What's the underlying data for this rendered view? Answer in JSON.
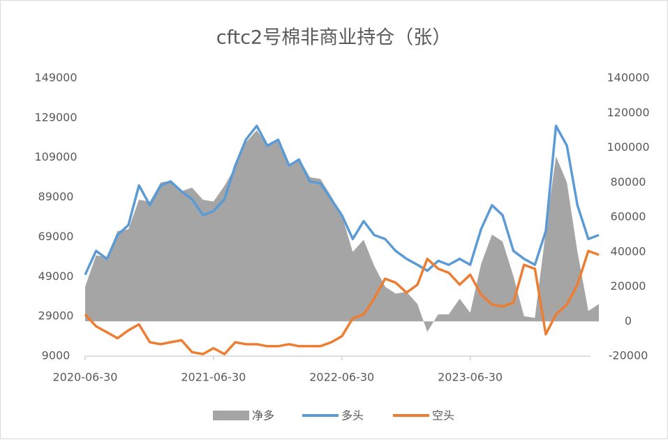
{
  "chart_data": {
    "type": "line",
    "title": "cftc2号棉非商业持仓（张）",
    "x": [
      "2020-06-30",
      "2020-07-31",
      "2020-08-31",
      "2020-09-30",
      "2020-10-31",
      "2020-11-30",
      "2020-12-31",
      "2021-01-31",
      "2021-02-28",
      "2021-03-31",
      "2021-04-30",
      "2021-05-31",
      "2021-06-30",
      "2021-07-31",
      "2021-08-31",
      "2021-09-30",
      "2021-10-31",
      "2021-11-30",
      "2021-12-31",
      "2022-01-31",
      "2022-02-28",
      "2022-03-31",
      "2022-04-30",
      "2022-05-31",
      "2022-06-30",
      "2022-07-31",
      "2022-08-31",
      "2022-09-30",
      "2022-10-31",
      "2022-11-30",
      "2022-12-31",
      "2023-01-31",
      "2023-02-28",
      "2023-03-31",
      "2023-04-30",
      "2023-05-31",
      "2023-06-30",
      "2023-07-31",
      "2023-08-31",
      "2023-09-30",
      "2023-10-31",
      "2023-11-30",
      "2023-12-31",
      "2024-01-31",
      "2024-02-29",
      "2024-03-31",
      "2024-04-30",
      "2024-05-31",
      "2024-06-30"
    ],
    "xlim": [
      "2020-06-30",
      "2024-06-30"
    ],
    "xticks": [
      "2020-06-30",
      "2021-06-30",
      "2022-06-30",
      "2023-06-30"
    ],
    "ylim": [
      9000,
      149000
    ],
    "yticks": [
      9000,
      29000,
      49000,
      69000,
      89000,
      109000,
      129000,
      149000
    ],
    "y2lim": [
      -20000,
      140000
    ],
    "y2ticks": [
      -20000,
      0,
      20000,
      40000,
      60000,
      80000,
      100000,
      120000,
      140000
    ],
    "series": [
      {
        "name": "净多",
        "type": "area",
        "axis": "y2",
        "color": "#a5a5a5",
        "values": [
          20000,
          38000,
          37000,
          52000,
          53000,
          70000,
          69000,
          80000,
          81000,
          75000,
          77000,
          70000,
          69000,
          78000,
          89000,
          103000,
          110000,
          101000,
          104000,
          90000,
          94000,
          83000,
          82000,
          72000,
          61000,
          40000,
          47000,
          32000,
          20000,
          16000,
          17000,
          10000,
          -6000,
          4000,
          4000,
          13000,
          5000,
          33000,
          50000,
          46000,
          26000,
          3000,
          2000,
          52000,
          95000,
          80000,
          40000,
          6000,
          10000
        ]
      },
      {
        "name": "多头",
        "type": "line",
        "color": "#5b9bd5",
        "values": [
          50000,
          62000,
          58000,
          70000,
          75000,
          95000,
          85000,
          95000,
          97000,
          92000,
          88000,
          80000,
          82000,
          88000,
          105000,
          118000,
          125000,
          115000,
          118000,
          105000,
          108000,
          97000,
          96000,
          88000,
          80000,
          68000,
          77000,
          70000,
          68000,
          62000,
          58000,
          55000,
          52000,
          57000,
          55000,
          58000,
          55000,
          73000,
          85000,
          80000,
          62000,
          58000,
          55000,
          72000,
          125000,
          115000,
          85000,
          68000,
          70000
        ]
      },
      {
        "name": "空头",
        "type": "line",
        "color": "#ed7d31",
        "values": [
          30000,
          24000,
          21000,
          18000,
          22000,
          25000,
          16000,
          15000,
          16000,
          17000,
          11000,
          10000,
          13000,
          10000,
          16000,
          15000,
          15000,
          14000,
          14000,
          15000,
          14000,
          14000,
          14000,
          16000,
          19000,
          28000,
          30000,
          38000,
          48000,
          46000,
          41000,
          45000,
          58000,
          53000,
          51000,
          45000,
          50000,
          40000,
          35000,
          34000,
          36000,
          55000,
          53000,
          20000,
          30000,
          35000,
          45000,
          62000,
          60000
        ]
      }
    ]
  }
}
